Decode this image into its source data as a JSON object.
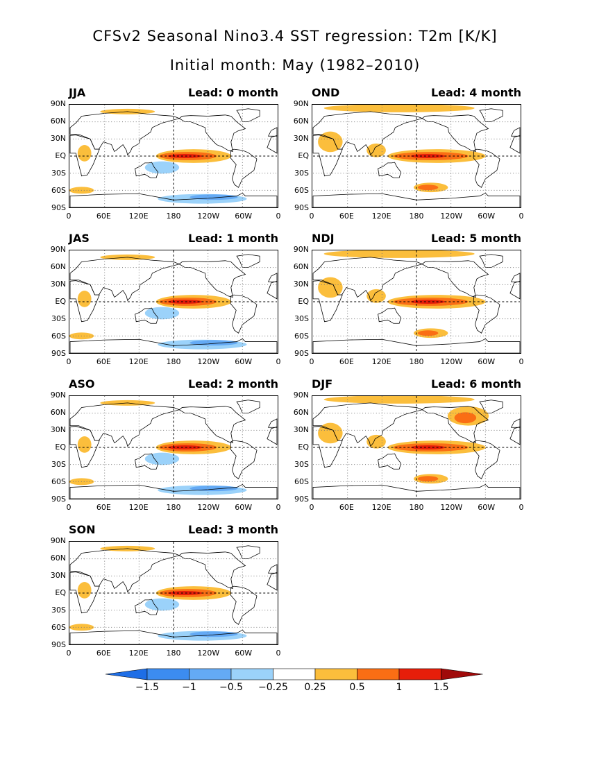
{
  "title": "CFSv2 Seasonal Nino3.4 SST regression: T2m [K/K]",
  "subtitle": "Initial month: May (1982–2010)",
  "lat_labels": [
    "90N",
    "60N",
    "30N",
    "EQ",
    "30S",
    "60S",
    "90S"
  ],
  "lon_labels": [
    "0",
    "60E",
    "120E",
    "180",
    "120W",
    "60W",
    "0"
  ],
  "panels": [
    {
      "season": "JJA",
      "lead": "Lead: 0 month"
    },
    {
      "season": "JAS",
      "lead": "Lead: 1 month"
    },
    {
      "season": "ASO",
      "lead": "Lead: 2 month"
    },
    {
      "season": "SON",
      "lead": "Lead: 3 month"
    },
    {
      "season": "OND",
      "lead": "Lead: 4 month"
    },
    {
      "season": "NDJ",
      "lead": "Lead: 5 month"
    },
    {
      "season": "DJF",
      "lead": "Lead: 6 month"
    }
  ],
  "colorbar": {
    "labels": [
      "−1.5",
      "−1",
      "−0.5",
      "−0.25",
      "0.25",
      "0.5",
      "1",
      "1.5"
    ],
    "colors": [
      "#1e6ee6",
      "#3c8cf0",
      "#64aaf5",
      "#9bd2fa",
      "#ffffff",
      "#fbbe3c",
      "#fa6e14",
      "#e61e0a",
      "#a00a0a"
    ]
  },
  "colors": {
    "weak_warm": "#fbbe3c",
    "warm": "#fa6e14",
    "strong_warm": "#e61e0a",
    "weak_cold": "#9bd2fa",
    "cold": "#64aaf5"
  }
}
